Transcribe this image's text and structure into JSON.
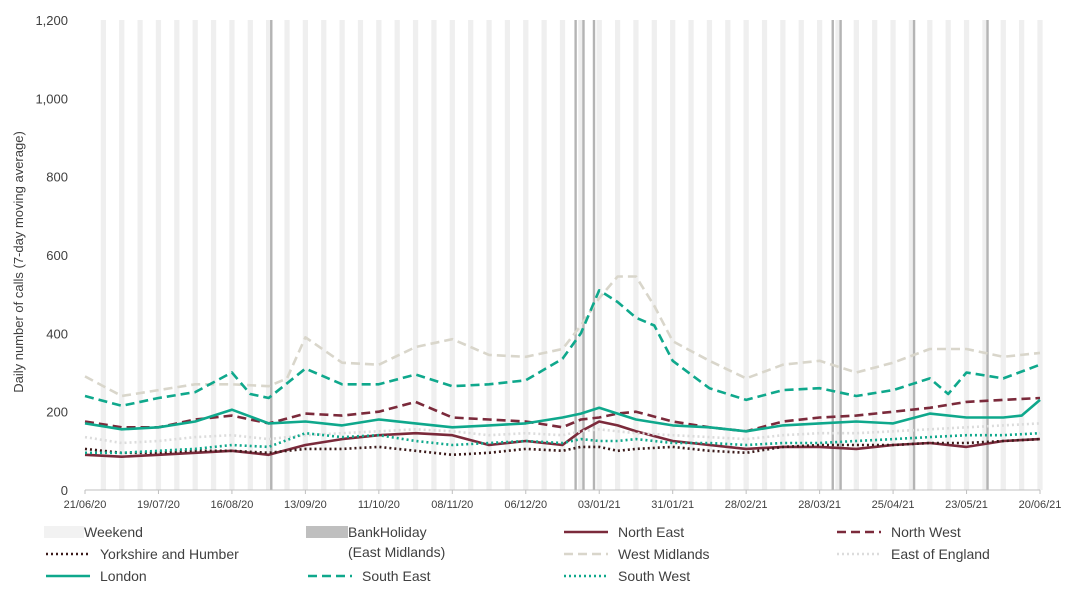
{
  "chart_data": {
    "type": "line",
    "title": "",
    "xlabel": "",
    "ylabel": "Daily number of calls (7-day moving average)",
    "ylim": [
      0,
      1200
    ],
    "yticks": [
      "0",
      "200",
      "400",
      "600",
      "800",
      "1,000",
      "1,200"
    ],
    "ytick_values": [
      0,
      200,
      400,
      600,
      800,
      1000,
      1200
    ],
    "x_start": "21/06/20",
    "x_end": "20/06/21",
    "xticks": [
      "21/06/20",
      "19/07/20",
      "16/08/20",
      "13/09/20",
      "11/10/20",
      "08/11/20",
      "06/12/20",
      "03/01/21",
      "31/01/21",
      "28/02/21",
      "28/03/21",
      "25/04/21",
      "23/05/21",
      "20/06/21"
    ],
    "grid": "weekend shading",
    "legend_position": "bottom",
    "weekend_label": "Weekend",
    "bank_holiday_label": "BankHoliday",
    "bank_holiday_label_2": "(East Midlands)",
    "bank_holidays": [
      "31/08/20",
      "25/12/20",
      "28/12/20",
      "01/01/21",
      "02/04/21",
      "05/04/21",
      "03/05/21",
      "31/05/21"
    ],
    "series": [
      {
        "name": "North East",
        "color": "#7b2a3b",
        "dash": "solid",
        "dates": [
          "21/06/20",
          "05/07/20",
          "19/07/20",
          "02/08/20",
          "16/08/20",
          "30/08/20",
          "13/09/20",
          "27/09/20",
          "11/10/20",
          "25/10/20",
          "08/11/20",
          "22/11/20",
          "06/12/20",
          "20/12/20",
          "27/12/20",
          "03/01/21",
          "10/01/21",
          "17/01/21",
          "31/01/21",
          "14/02/21",
          "28/02/21",
          "14/03/21",
          "28/03/21",
          "11/04/21",
          "25/04/21",
          "09/05/21",
          "23/05/21",
          "06/06/21",
          "20/06/21"
        ],
        "values": [
          90,
          85,
          90,
          95,
          100,
          90,
          115,
          130,
          140,
          145,
          140,
          115,
          125,
          115,
          150,
          175,
          165,
          150,
          125,
          115,
          105,
          110,
          110,
          105,
          115,
          120,
          110,
          125,
          130
        ]
      },
      {
        "name": "North West",
        "color": "#7b2a3b",
        "dash": "dashed",
        "dates": [
          "21/06/20",
          "05/07/20",
          "19/07/20",
          "02/08/20",
          "16/08/20",
          "30/08/20",
          "13/09/20",
          "27/09/20",
          "11/10/20",
          "25/10/20",
          "08/11/20",
          "22/11/20",
          "06/12/20",
          "20/12/20",
          "27/12/20",
          "03/01/21",
          "10/01/21",
          "17/01/21",
          "31/01/21",
          "14/02/21",
          "28/02/21",
          "14/03/21",
          "28/03/21",
          "11/04/21",
          "25/04/21",
          "09/05/21",
          "23/05/21",
          "06/06/21",
          "20/06/21"
        ],
        "values": [
          175,
          160,
          160,
          180,
          190,
          170,
          195,
          190,
          200,
          225,
          185,
          180,
          175,
          160,
          180,
          185,
          195,
          200,
          175,
          160,
          150,
          175,
          185,
          190,
          200,
          210,
          225,
          230,
          235
        ]
      },
      {
        "name": "Yorkshire and Humber",
        "color": "#3b1a1a",
        "dash": "dotted",
        "dates": [
          "21/06/20",
          "05/07/20",
          "19/07/20",
          "02/08/20",
          "16/08/20",
          "30/08/20",
          "13/09/20",
          "27/09/20",
          "11/10/20",
          "25/10/20",
          "08/11/20",
          "22/11/20",
          "06/12/20",
          "20/12/20",
          "27/12/20",
          "03/01/21",
          "10/01/21",
          "17/01/21",
          "31/01/21",
          "14/02/21",
          "28/02/21",
          "14/03/21",
          "28/03/21",
          "11/04/21",
          "25/04/21",
          "09/05/21",
          "23/05/21",
          "06/06/21",
          "20/06/21"
        ],
        "values": [
          105,
          95,
          95,
          100,
          100,
          95,
          105,
          105,
          110,
          100,
          90,
          95,
          105,
          100,
          110,
          110,
          100,
          105,
          110,
          100,
          95,
          110,
          115,
          115,
          115,
          120,
          120,
          125,
          130
        ]
      },
      {
        "name": "West Midlands",
        "color": "#d9d6cb",
        "dash": "dashed",
        "dates": [
          "21/06/20",
          "05/07/20",
          "19/07/20",
          "02/08/20",
          "16/08/20",
          "30/08/20",
          "06/09/20",
          "13/09/20",
          "27/09/20",
          "11/10/20",
          "25/10/20",
          "08/11/20",
          "22/11/20",
          "06/12/20",
          "20/12/20",
          "27/12/20",
          "03/01/21",
          "10/01/21",
          "17/01/21",
          "24/01/21",
          "31/01/21",
          "14/02/21",
          "28/02/21",
          "14/03/21",
          "28/03/21",
          "11/04/21",
          "25/04/21",
          "09/05/21",
          "23/05/21",
          "06/06/21",
          "20/06/21"
        ],
        "values": [
          290,
          240,
          255,
          270,
          270,
          265,
          285,
          390,
          325,
          320,
          365,
          385,
          345,
          340,
          360,
          420,
          490,
          545,
          545,
          470,
          380,
          330,
          285,
          320,
          330,
          300,
          325,
          360,
          360,
          340,
          350
        ]
      },
      {
        "name": "East of England",
        "color": "#dcdcdc",
        "dash": "dotted",
        "dates": [
          "21/06/20",
          "05/07/20",
          "19/07/20",
          "02/08/20",
          "16/08/20",
          "30/08/20",
          "13/09/20",
          "27/09/20",
          "11/10/20",
          "25/10/20",
          "08/11/20",
          "22/11/20",
          "06/12/20",
          "20/12/20",
          "27/12/20",
          "03/01/21",
          "10/01/21",
          "17/01/21",
          "31/01/21",
          "14/02/21",
          "28/02/21",
          "14/03/21",
          "28/03/21",
          "11/04/21",
          "25/04/21",
          "09/05/21",
          "23/05/21",
          "06/06/21",
          "20/06/21"
        ],
        "values": [
          135,
          120,
          125,
          135,
          140,
          130,
          140,
          145,
          150,
          155,
          150,
          140,
          145,
          140,
          150,
          155,
          150,
          145,
          140,
          135,
          130,
          140,
          145,
          145,
          150,
          155,
          160,
          165,
          170
        ]
      },
      {
        "name": "London",
        "color": "#0fa88c",
        "dash": "solid",
        "dates": [
          "21/06/20",
          "05/07/20",
          "19/07/20",
          "02/08/20",
          "16/08/20",
          "30/08/20",
          "13/09/20",
          "27/09/20",
          "11/10/20",
          "25/10/20",
          "08/11/20",
          "22/11/20",
          "06/12/20",
          "20/12/20",
          "27/12/20",
          "03/01/21",
          "10/01/21",
          "17/01/21",
          "31/01/21",
          "14/02/21",
          "28/02/21",
          "14/03/21",
          "28/03/21",
          "11/04/21",
          "25/04/21",
          "09/05/21",
          "23/05/21",
          "06/06/21",
          "13/06/21",
          "20/06/21"
        ],
        "values": [
          170,
          155,
          160,
          175,
          205,
          170,
          175,
          165,
          180,
          170,
          160,
          165,
          170,
          185,
          195,
          210,
          195,
          180,
          165,
          160,
          150,
          165,
          170,
          175,
          170,
          195,
          185,
          185,
          190,
          230
        ]
      },
      {
        "name": "South East",
        "color": "#0fa88c",
        "dash": "dashed",
        "dates": [
          "21/06/20",
          "05/07/20",
          "19/07/20",
          "02/08/20",
          "16/08/20",
          "23/08/20",
          "30/08/20",
          "13/09/20",
          "27/09/20",
          "11/10/20",
          "25/10/20",
          "08/11/20",
          "22/11/20",
          "06/12/20",
          "20/12/20",
          "27/12/20",
          "03/01/21",
          "10/01/21",
          "17/01/21",
          "24/01/21",
          "31/01/21",
          "14/02/21",
          "28/02/21",
          "14/03/21",
          "28/03/21",
          "11/04/21",
          "25/04/21",
          "09/05/21",
          "16/05/21",
          "23/05/21",
          "06/06/21",
          "20/06/21"
        ],
        "values": [
          240,
          215,
          235,
          250,
          300,
          245,
          235,
          310,
          270,
          270,
          295,
          265,
          270,
          280,
          335,
          400,
          510,
          480,
          440,
          420,
          330,
          260,
          230,
          255,
          260,
          240,
          255,
          285,
          245,
          300,
          285,
          320
        ]
      },
      {
        "name": "South West",
        "color": "#0fa88c",
        "dash": "dotted",
        "dates": [
          "21/06/20",
          "05/07/20",
          "19/07/20",
          "02/08/20",
          "16/08/20",
          "30/08/20",
          "13/09/20",
          "27/09/20",
          "11/10/20",
          "25/10/20",
          "08/11/20",
          "22/11/20",
          "06/12/20",
          "20/12/20",
          "27/12/20",
          "03/01/21",
          "10/01/21",
          "17/01/21",
          "31/01/21",
          "14/02/21",
          "28/02/21",
          "14/03/21",
          "28/03/21",
          "11/04/21",
          "25/04/21",
          "09/05/21",
          "23/05/21",
          "06/06/21",
          "20/06/21"
        ],
        "values": [
          95,
          95,
          100,
          105,
          115,
          110,
          145,
          135,
          140,
          125,
          115,
          120,
          125,
          120,
          130,
          125,
          125,
          130,
          120,
          120,
          115,
          120,
          120,
          125,
          130,
          135,
          140,
          140,
          145
        ]
      }
    ]
  }
}
